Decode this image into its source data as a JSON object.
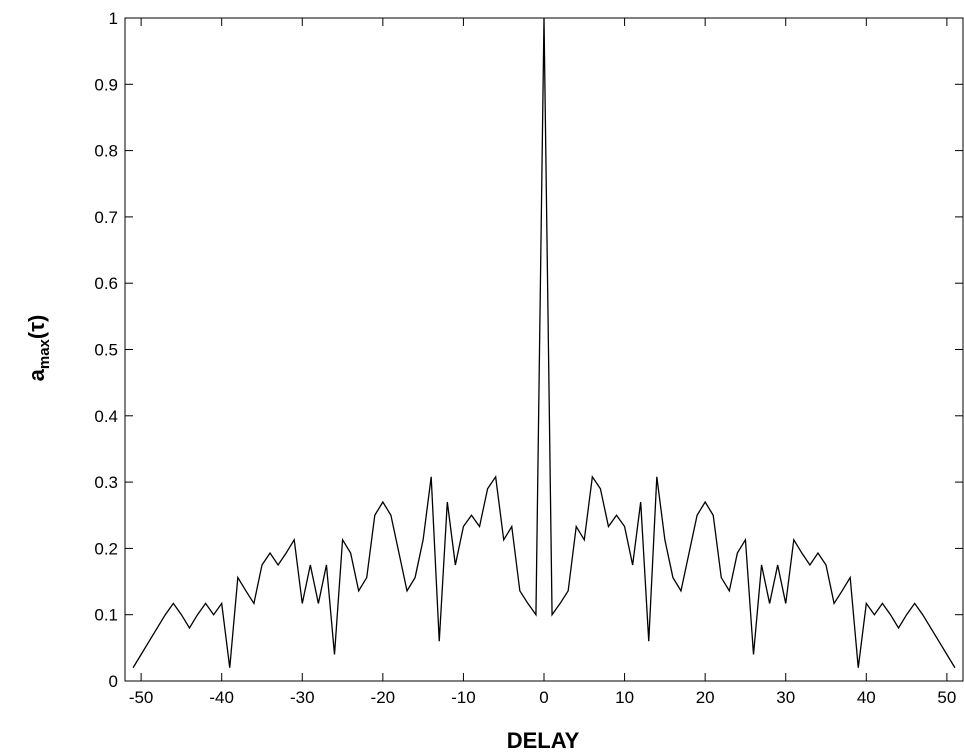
{
  "chart_data": {
    "type": "line",
    "title": "",
    "xlabel": "DELAY",
    "ylabel_main": "a",
    "ylabel_sub": "max",
    "ylabel_tail": "(τ)",
    "xlim": [
      -52,
      52
    ],
    "ylim": [
      0,
      1
    ],
    "xticks": [
      -50,
      -40,
      -30,
      -20,
      -10,
      0,
      10,
      20,
      30,
      40,
      50
    ],
    "xtick_labels": [
      "-50",
      "-40",
      "-30",
      "-20",
      "-10",
      "0",
      "10",
      "20",
      "30",
      "40",
      "50"
    ],
    "yticks": [
      0,
      0.1,
      0.2,
      0.3,
      0.4,
      0.5,
      0.6,
      0.7,
      0.8,
      0.9,
      1
    ],
    "ytick_labels": [
      "0",
      "0.1",
      "0.2",
      "0.3",
      "0.4",
      "0.5",
      "0.6",
      "0.7",
      "0.8",
      "0.9",
      "1"
    ],
    "grid": false,
    "line_color": "#000000",
    "series": [
      {
        "x": [
          -51,
          -50,
          -49,
          -48,
          -47,
          -46,
          -45,
          -44,
          -43,
          -42,
          -41,
          -40,
          -39,
          -38,
          -37,
          -36,
          -35,
          -34,
          -33,
          -32,
          -31,
          -30,
          -29,
          -28,
          -27,
          -26,
          -25,
          -24,
          -23,
          -22,
          -21,
          -20,
          -19,
          -18,
          -17,
          -16,
          -15,
          -14,
          -13,
          -12,
          -11,
          -10,
          -9,
          -8,
          -7,
          -6,
          -5,
          -4,
          -3,
          -2,
          -1,
          0,
          1,
          2,
          3,
          4,
          5,
          6,
          7,
          8,
          9,
          10,
          11,
          12,
          13,
          14,
          15,
          16,
          17,
          18,
          19,
          20,
          21,
          22,
          23,
          24,
          25,
          26,
          27,
          28,
          29,
          30,
          31,
          32,
          33,
          34,
          35,
          36,
          37,
          38,
          39,
          40,
          41,
          42,
          43,
          44,
          45,
          46,
          47,
          48,
          49,
          50,
          51
        ],
        "y": [
          0.02,
          0.04,
          0.06,
          0.08,
          0.1,
          0.117,
          0.1,
          0.08,
          0.1,
          0.117,
          0.1,
          0.117,
          0.02,
          0.156,
          0.136,
          0.117,
          0.175,
          0.193,
          0.175,
          0.193,
          0.213,
          0.117,
          0.175,
          0.117,
          0.175,
          0.04,
          0.213,
          0.193,
          0.136,
          0.156,
          0.25,
          0.27,
          0.25,
          0.193,
          0.136,
          0.156,
          0.213,
          0.308,
          0.06,
          0.27,
          0.175,
          0.233,
          0.25,
          0.233,
          0.29,
          0.308,
          0.213,
          0.233,
          0.136,
          0.117,
          0.1,
          1,
          0.1,
          0.117,
          0.136,
          0.233,
          0.213,
          0.308,
          0.29,
          0.233,
          0.25,
          0.233,
          0.175,
          0.27,
          0.06,
          0.308,
          0.213,
          0.156,
          0.136,
          0.193,
          0.25,
          0.27,
          0.25,
          0.156,
          0.136,
          0.193,
          0.213,
          0.04,
          0.175,
          0.117,
          0.175,
          0.117,
          0.213,
          0.193,
          0.175,
          0.193,
          0.175,
          0.117,
          0.136,
          0.156,
          0.02,
          0.117,
          0.1,
          0.117,
          0.1,
          0.08,
          0.1,
          0.117,
          0.1,
          0.08,
          0.06,
          0.04,
          0.02
        ]
      }
    ]
  }
}
